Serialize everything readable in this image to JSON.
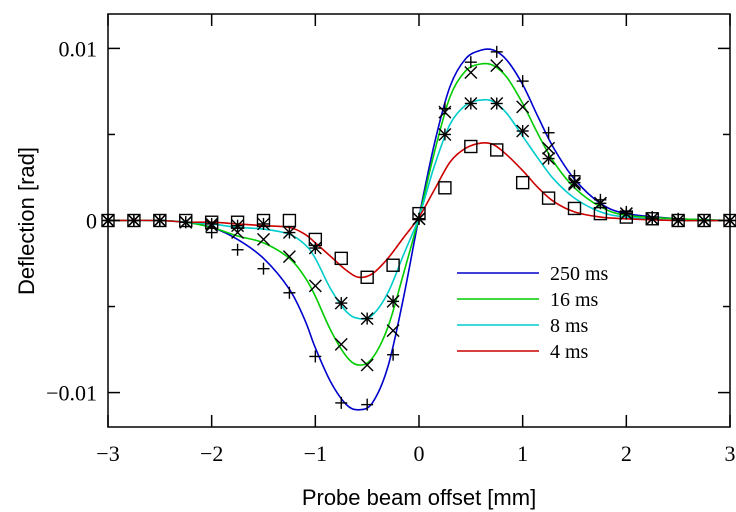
{
  "chart_data": {
    "type": "line",
    "title": "",
    "xlabel": "Probe beam offset [mm]",
    "ylabel": "Deflection [rad]",
    "xlim": [
      -3,
      3
    ],
    "ylim": [
      -0.012,
      0.012
    ],
    "xticks": [
      {
        "value": -3,
        "label": "−3"
      },
      {
        "value": -2,
        "label": "−2"
      },
      {
        "value": -1,
        "label": "−1"
      },
      {
        "value": 0,
        "label": "0"
      },
      {
        "value": 1,
        "label": "1"
      },
      {
        "value": 2,
        "label": "2"
      },
      {
        "value": 3,
        "label": "3"
      }
    ],
    "yticks": [
      {
        "value": 0.01,
        "label": "0.01"
      },
      {
        "value": 0,
        "label": "0"
      },
      {
        "value": -0.01,
        "label": "−0.01"
      }
    ],
    "yminor": [
      0.005,
      -0.005
    ],
    "grid": false,
    "legend_position": "lower-right",
    "series": [
      {
        "name": "250 ms",
        "color": "#0000cc",
        "marker": "plus",
        "x": [
          -3.0,
          -2.75,
          -2.5,
          -2.25,
          -2.0,
          -1.75,
          -1.5,
          -1.25,
          -1.0,
          -0.75,
          -0.5,
          -0.25,
          0.0,
          0.25,
          0.5,
          0.75,
          1.0,
          1.25,
          1.5,
          1.75,
          2.0,
          2.25,
          2.5,
          2.75,
          3.0
        ],
        "y": [
          0.0,
          0.0,
          0.0,
          -0.0001,
          -0.0007,
          -0.0017,
          -0.0028,
          -0.0042,
          -0.0079,
          -0.0106,
          -0.0107,
          -0.0078,
          0.0001,
          0.0065,
          0.0092,
          0.0098,
          0.0081,
          0.0051,
          0.0026,
          0.0012,
          0.0005,
          0.0002,
          0.0001,
          0.0,
          0.0
        ],
        "curve_x": [
          -3.0,
          -2.5,
          -2.25,
          -2.0,
          -1.75,
          -1.5,
          -1.25,
          -1.1,
          -1.0,
          -0.85,
          -0.7,
          -0.58,
          -0.45,
          -0.3,
          -0.15,
          0.0,
          0.15,
          0.3,
          0.45,
          0.6,
          0.72,
          0.85,
          1.0,
          1.15,
          1.3,
          1.5,
          1.75,
          2.0,
          2.5,
          3.0
        ],
        "curve_y": [
          0.0,
          0.0,
          -0.0001,
          -0.0004,
          -0.0011,
          -0.0022,
          -0.004,
          -0.0058,
          -0.0074,
          -0.0094,
          -0.0107,
          -0.011,
          -0.0106,
          -0.0085,
          -0.0045,
          0.0002,
          0.0045,
          0.0078,
          0.0094,
          0.0099,
          0.0099,
          0.0093,
          0.0079,
          0.006,
          0.0042,
          0.0024,
          0.001,
          0.0004,
          0.0001,
          0.0
        ]
      },
      {
        "name": "16 ms",
        "color": "#00cc00",
        "marker": "x",
        "x": [
          -3.0,
          -2.75,
          -2.5,
          -2.25,
          -2.0,
          -1.75,
          -1.5,
          -1.25,
          -1.0,
          -0.75,
          -0.5,
          -0.25,
          0.0,
          0.25,
          0.5,
          0.75,
          1.0,
          1.25,
          1.5,
          1.75,
          2.0,
          2.25,
          2.5,
          2.75,
          3.0
        ],
        "y": [
          0.0,
          0.0,
          0.0,
          -0.0001,
          -0.0003,
          -0.0007,
          -0.0011,
          -0.0021,
          -0.0038,
          -0.0072,
          -0.0084,
          -0.0064,
          0.0001,
          0.0063,
          0.0086,
          0.009,
          0.0066,
          0.0042,
          0.0021,
          0.001,
          0.0004,
          0.0001,
          0.0,
          0.0,
          0.0
        ],
        "curve_x": [
          -3.0,
          -2.5,
          -2.25,
          -2.0,
          -1.75,
          -1.5,
          -1.25,
          -1.1,
          -1.0,
          -0.85,
          -0.7,
          -0.58,
          -0.45,
          -0.3,
          -0.15,
          0.0,
          0.15,
          0.3,
          0.45,
          0.6,
          0.72,
          0.85,
          1.0,
          1.15,
          1.3,
          1.5,
          1.75,
          2.0,
          2.5,
          3.0
        ],
        "curve_y": [
          0.0,
          0.0,
          -0.0001,
          -0.0004,
          -0.0009,
          -0.0013,
          -0.0022,
          -0.0033,
          -0.0044,
          -0.0064,
          -0.0079,
          -0.0084,
          -0.008,
          -0.0062,
          -0.0031,
          0.0002,
          0.004,
          0.0072,
          0.0087,
          0.0091,
          0.009,
          0.0083,
          0.0068,
          0.005,
          0.0034,
          0.0019,
          0.0008,
          0.0003,
          0.0001,
          0.0
        ]
      },
      {
        "name": "8 ms",
        "color": "#00cccc",
        "marker": "star",
        "x": [
          -3.0,
          -2.75,
          -2.5,
          -2.25,
          -2.0,
          -1.75,
          -1.5,
          -1.25,
          -1.0,
          -0.75,
          -0.5,
          -0.25,
          0.0,
          0.25,
          0.5,
          0.75,
          1.0,
          1.25,
          1.5,
          1.75,
          2.0,
          2.25,
          2.5,
          2.75,
          3.0
        ],
        "y": [
          0.0,
          0.0,
          0.0,
          -0.0001,
          -0.0002,
          -0.0003,
          -0.0002,
          -0.0007,
          -0.0016,
          -0.0048,
          -0.0057,
          -0.0047,
          0.0001,
          0.005,
          0.0068,
          0.0068,
          0.0052,
          0.0036,
          0.0022,
          0.001,
          0.0004,
          0.0001,
          0.0,
          0.0,
          0.0
        ],
        "curve_x": [
          -3.0,
          -2.5,
          -2.25,
          -2.0,
          -1.75,
          -1.5,
          -1.25,
          -1.1,
          -1.0,
          -0.85,
          -0.7,
          -0.58,
          -0.45,
          -0.3,
          -0.15,
          0.0,
          0.15,
          0.3,
          0.45,
          0.6,
          0.72,
          0.85,
          1.0,
          1.15,
          1.3,
          1.5,
          1.75,
          2.0,
          2.5,
          3.0
        ],
        "curve_y": [
          0.0,
          0.0,
          -0.0001,
          -0.0002,
          -0.0004,
          -0.0005,
          -0.0008,
          -0.0014,
          -0.0022,
          -0.004,
          -0.0053,
          -0.0057,
          -0.0055,
          -0.0042,
          -0.002,
          0.0002,
          0.0032,
          0.0056,
          0.0067,
          0.007,
          0.0069,
          0.0062,
          0.0049,
          0.0036,
          0.0024,
          0.0013,
          0.0005,
          0.0002,
          0.0,
          0.0
        ]
      },
      {
        "name": "4 ms",
        "color": "#cc0000",
        "marker": "square",
        "x": [
          -3.0,
          -2.75,
          -2.5,
          -2.25,
          -2.0,
          -1.75,
          -1.5,
          -1.25,
          -1.0,
          -0.75,
          -0.5,
          -0.25,
          0.0,
          0.25,
          0.5,
          0.75,
          1.0,
          1.25,
          1.5,
          1.75,
          2.0,
          2.25,
          2.5,
          2.75,
          3.0
        ],
        "y": [
          0.0,
          0.0,
          0.0,
          0.0,
          -0.0001,
          -0.0001,
          0.0,
          0.0,
          -0.0011,
          -0.0022,
          -0.0033,
          -0.0026,
          0.0004,
          0.0019,
          0.0043,
          0.0041,
          0.0022,
          0.0013,
          0.0007,
          0.0004,
          0.0002,
          0.0001,
          0.0,
          0.0,
          0.0
        ],
        "curve_x": [
          -3.0,
          -2.5,
          -2.25,
          -2.0,
          -1.75,
          -1.5,
          -1.25,
          -1.1,
          -1.0,
          -0.85,
          -0.7,
          -0.58,
          -0.45,
          -0.3,
          -0.15,
          0.0,
          0.15,
          0.3,
          0.45,
          0.6,
          0.72,
          0.85,
          1.0,
          1.15,
          1.3,
          1.5,
          1.75,
          2.0,
          2.5,
          3.0
        ],
        "curve_y": [
          0.0,
          0.0,
          -0.0001,
          -0.0001,
          -0.0002,
          -0.0003,
          -0.0004,
          -0.0008,
          -0.0013,
          -0.0021,
          -0.0029,
          -0.0033,
          -0.0031,
          -0.0022,
          -0.001,
          0.0002,
          0.0018,
          0.0034,
          0.0042,
          0.0045,
          0.0044,
          0.0038,
          0.0029,
          0.0019,
          0.0011,
          0.0005,
          0.0002,
          0.0001,
          0.0,
          0.0
        ]
      }
    ]
  }
}
